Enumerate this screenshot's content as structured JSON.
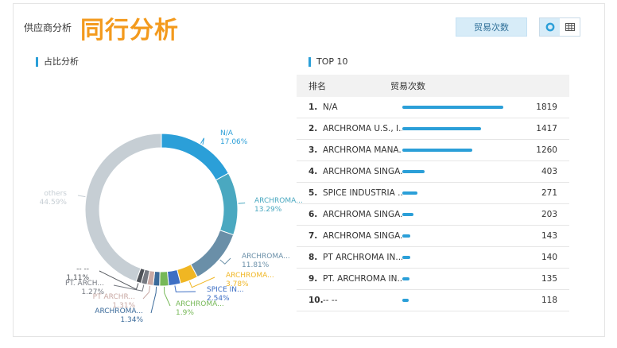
{
  "header": {
    "small_title": "供应商分析",
    "big_title": "同行分析",
    "metric_button": "贸易次数",
    "view_toggle": [
      "donut-icon",
      "table-icon"
    ]
  },
  "left_section": {
    "title": "占比分析"
  },
  "right_section": {
    "title": "TOP 10"
  },
  "table": {
    "col_rank": "排名",
    "col_metric": "贸易次数",
    "rows": [
      {
        "rank": "1.",
        "name": "N/A",
        "value": 1819
      },
      {
        "rank": "2.",
        "name": "ARCHROMA U.S., I...",
        "value": 1417
      },
      {
        "rank": "3.",
        "name": "ARCHROMA MANA...",
        "value": 1260
      },
      {
        "rank": "4.",
        "name": "ARCHROMA SINGA...",
        "value": 403
      },
      {
        "rank": "5.",
        "name": "SPICE INDUSTRIA ...",
        "value": 271
      },
      {
        "rank": "6.",
        "name": "ARCHROMA SINGA...",
        "value": 203
      },
      {
        "rank": "7.",
        "name": "ARCHROMA SINGA...",
        "value": 143
      },
      {
        "rank": "8.",
        "name": "PT ARCHROMA IN...",
        "value": 140
      },
      {
        "rank": "9.",
        "name": "PT. ARCHROMA IN...",
        "value": 135
      },
      {
        "rank": "10.",
        "name": "-- --",
        "value": 118
      }
    ]
  },
  "chart_data": {
    "type": "pie",
    "slices": [
      {
        "label": "N/A",
        "pct_label": "17.06%",
        "value": 17.06,
        "color": "#2b9fd8"
      },
      {
        "label": "ARCHROMA...",
        "pct_label": "13.29%",
        "value": 13.29,
        "color": "#4aa8c0"
      },
      {
        "label": "ARCHROMA...",
        "pct_label": "11.81%",
        "value": 11.81,
        "color": "#6a8fa8"
      },
      {
        "label": "ARCHROMA...",
        "pct_label": "3.78%",
        "value": 3.78,
        "color": "#f0b623"
      },
      {
        "label": "SPICE IN...",
        "pct_label": "2.54%",
        "value": 2.54,
        "color": "#3e6fc4"
      },
      {
        "label": "ARCHROMA...",
        "pct_label": "1.9%",
        "value": 1.9,
        "color": "#76b857"
      },
      {
        "label": "ARCHROMA...",
        "pct_label": "1.34%",
        "value": 1.34,
        "color": "#3a6a9a"
      },
      {
        "label": "PT ARCHR...",
        "pct_label": "1.31%",
        "value": 1.31,
        "color": "#c9a9a4"
      },
      {
        "label": "PT. ARCH...",
        "pct_label": "1.27%",
        "value": 1.27,
        "color": "#767a82"
      },
      {
        "label": "-- --",
        "pct_label": "1.11%",
        "value": 1.11,
        "color": "#4e5258"
      },
      {
        "label": "others",
        "pct_label": "44.59%",
        "value": 44.59,
        "color": "#c6ced4"
      }
    ]
  }
}
